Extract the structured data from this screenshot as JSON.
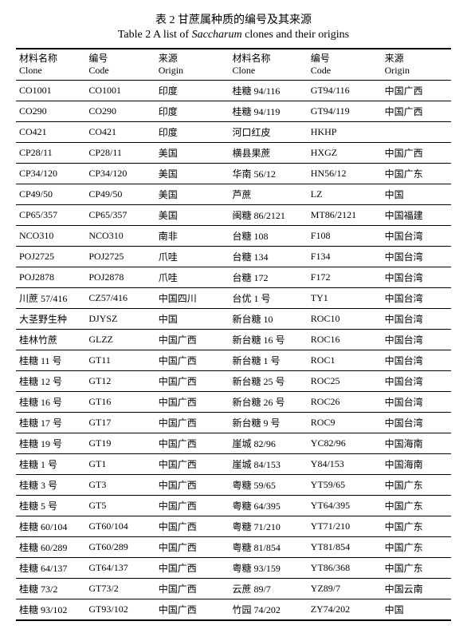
{
  "caption": {
    "cn": "表 2  甘蔗属种质的编号及其来源",
    "en_prefix": "Table 2   A list of ",
    "en_italic": "Saccharum",
    "en_suffix": " clones and their origins"
  },
  "headers": {
    "h1_cn": "材料名称",
    "h1_en": "Clone",
    "h2_cn": "编号",
    "h2_en": "Code",
    "h3_cn": "来源",
    "h3_en": "Origin",
    "h4_cn": "材料名称",
    "h4_en": "Clone",
    "h5_cn": "编号",
    "h5_en": "Code",
    "h6_cn": "来源",
    "h6_en": "Origin"
  },
  "rows": [
    {
      "a1": "CO1001",
      "a2": "CO1001",
      "a3": "印度",
      "b1": "桂糖 94/116",
      "b2": "GT94/116",
      "b3": "中国广西"
    },
    {
      "a1": "CO290",
      "a2": "CO290",
      "a3": "印度",
      "b1": "桂糖 94/119",
      "b2": "GT94/119",
      "b3": "中国广西"
    },
    {
      "a1": "CO421",
      "a2": "CO421",
      "a3": "印度",
      "b1": "河口红皮",
      "b2": "HKHP",
      "b3": ""
    },
    {
      "a1": "CP28/11",
      "a2": "CP28/11",
      "a3": "美国",
      "b1": "横县果蔗",
      "b2": "HXGZ",
      "b3": "中国广西"
    },
    {
      "a1": "CP34/120",
      "a2": "CP34/120",
      "a3": "美国",
      "b1": "华南 56/12",
      "b2": "HN56/12",
      "b3": "中国广东"
    },
    {
      "a1": "CP49/50",
      "a2": "CP49/50",
      "a3": "美国",
      "b1": "芦蔗",
      "b2": "LZ",
      "b3": "中国"
    },
    {
      "a1": "CP65/357",
      "a2": "CP65/357",
      "a3": "美国",
      "b1": "闽糖 86/2121",
      "b2": "MT86/2121",
      "b3": "中国福建"
    },
    {
      "a1": "NCO310",
      "a2": "NCO310",
      "a3": "南非",
      "b1": "台糖 108",
      "b2": "F108",
      "b3": "中国台湾"
    },
    {
      "a1": "POJ2725",
      "a2": "POJ2725",
      "a3": "爪哇",
      "b1": "台糖 134",
      "b2": "F134",
      "b3": "中国台湾"
    },
    {
      "a1": "POJ2878",
      "a2": "POJ2878",
      "a3": "爪哇",
      "b1": "台糖 172",
      "b2": "F172",
      "b3": "中国台湾"
    },
    {
      "a1": "川蔗 57/416",
      "a2": "CZ57/416",
      "a3": "中国四川",
      "b1": "台优 1 号",
      "b2": "TY1",
      "b3": "中国台湾"
    },
    {
      "a1": "大茎野生种",
      "a2": "DJYSZ",
      "a3": "中国",
      "b1": "新台糖 10",
      "b2": "ROC10",
      "b3": "中国台湾"
    },
    {
      "a1": "桂林竹蔗",
      "a2": "GLZZ",
      "a3": "中国广西",
      "b1": "新台糖 16 号",
      "b2": "ROC16",
      "b3": "中国台湾"
    },
    {
      "a1": "桂糖 11 号",
      "a2": "GT11",
      "a3": "中国广西",
      "b1": "新台糖 1 号",
      "b2": "ROC1",
      "b3": "中国台湾"
    },
    {
      "a1": "桂糖 12 号",
      "a2": "GT12",
      "a3": "中国广西",
      "b1": "新台糖 25 号",
      "b2": "ROC25",
      "b3": "中国台湾"
    },
    {
      "a1": "桂糖 16 号",
      "a2": "GT16",
      "a3": "中国广西",
      "b1": "新台糖 26 号",
      "b2": "ROC26",
      "b3": "中国台湾"
    },
    {
      "a1": "桂糖 17 号",
      "a2": "GT17",
      "a3": "中国广西",
      "b1": "新台糖 9 号",
      "b2": "ROC9",
      "b3": "中国台湾"
    },
    {
      "a1": "桂糖 19 号",
      "a2": "GT19",
      "a3": "中国广西",
      "b1": "崖城 82/96",
      "b2": "YC82/96",
      "b3": "中国海南"
    },
    {
      "a1": "桂糖 1 号",
      "a2": "GT1",
      "a3": "中国广西",
      "b1": "崖城 84/153",
      "b2": "Y84/153",
      "b3": "中国海南"
    },
    {
      "a1": "桂糖 3 号",
      "a2": "GT3",
      "a3": "中国广西",
      "b1": "粤糖 59/65",
      "b2": "YT59/65",
      "b3": "中国广东"
    },
    {
      "a1": "桂糖 5 号",
      "a2": "GT5",
      "a3": "中国广西",
      "b1": "粤糖 64/395",
      "b2": "YT64/395",
      "b3": "中国广东"
    },
    {
      "a1": "桂糖 60/104",
      "a2": "GT60/104",
      "a3": "中国广西",
      "b1": "粤糖 71/210",
      "b2": "YT71/210",
      "b3": "中国广东"
    },
    {
      "a1": "桂糖 60/289",
      "a2": "GT60/289",
      "a3": "中国广西",
      "b1": "粤糖 81/854",
      "b2": "YT81/854",
      "b3": "中国广东"
    },
    {
      "a1": "桂糖 64/137",
      "a2": "GT64/137",
      "a3": "中国广西",
      "b1": "粤糖 93/159",
      "b2": "YT86/368",
      "b3": "中国广东"
    },
    {
      "a1": "桂糖 73/2",
      "a2": "GT73/2",
      "a3": "中国广西",
      "b1": "云蔗 89/7",
      "b2": "YZ89/7",
      "b3": "中国云南"
    },
    {
      "a1": "桂糖 93/102",
      "a2": "GT93/102",
      "a3": "中国广西",
      "b1": "竹园 74/202",
      "b2": "ZY74/202",
      "b3": "中国"
    }
  ],
  "style": {
    "text_color": "#000000",
    "bg_color": "#ffffff",
    "rule_thick": 2,
    "rule_thin": 1,
    "font_size_caption": 14,
    "font_size_body": 12
  }
}
